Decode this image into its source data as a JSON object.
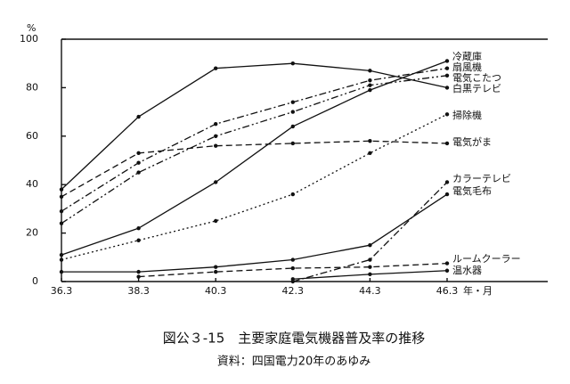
{
  "chart_data": {
    "type": "line",
    "title": "図公３-15　主要家庭電気機器普及率の推移",
    "subtitle": "資料：四国電力20年のあゆみ",
    "y_unit": "%",
    "x_unit": "年・月",
    "categories": [
      "36.3",
      "38.3",
      "40.3",
      "42.3",
      "44.3",
      "46.3"
    ],
    "ylim": [
      0,
      100
    ],
    "yticks": [
      0,
      20,
      40,
      60,
      80,
      100
    ],
    "series": [
      {
        "name": "冷蔵庫",
        "color": "#111111",
        "line_style": "solid",
        "values": [
          11,
          22,
          41,
          64,
          79,
          91
        ]
      },
      {
        "name": "扇風機",
        "color": "#111111",
        "line_style": "dashdot",
        "values": [
          29,
          49,
          65,
          74,
          83,
          88
        ]
      },
      {
        "name": "電気こたつ",
        "color": "#111111",
        "line_style": "dashdotdot",
        "values": [
          24,
          45,
          60,
          70,
          81,
          85
        ]
      },
      {
        "name": "白黒テレビ",
        "color": "#111111",
        "line_style": "solid",
        "values": [
          38,
          68,
          88,
          90,
          87,
          80
        ]
      },
      {
        "name": "掃除機",
        "color": "#111111",
        "line_style": "dotted",
        "values": [
          9,
          17,
          25,
          36,
          53,
          69
        ]
      },
      {
        "name": "電気がま",
        "color": "#111111",
        "line_style": "dashed",
        "values": [
          35,
          53,
          56,
          57,
          58,
          57
        ]
      },
      {
        "name": "カラーテレビ",
        "color": "#111111",
        "line_style": "dashdot",
        "values": [
          null,
          null,
          null,
          0,
          9,
          41
        ]
      },
      {
        "name": "電気毛布",
        "color": "#111111",
        "line_style": "solid",
        "values": [
          4,
          4,
          6,
          9,
          15,
          36
        ]
      },
      {
        "name": "ルームクーラー",
        "color": "#111111",
        "line_style": "dashed",
        "values": [
          null,
          2,
          4,
          5.5,
          6,
          7.5
        ]
      },
      {
        "name": "温水器",
        "color": "#111111",
        "line_style": "solid",
        "values": [
          null,
          null,
          null,
          1,
          3,
          4.5
        ]
      }
    ]
  }
}
